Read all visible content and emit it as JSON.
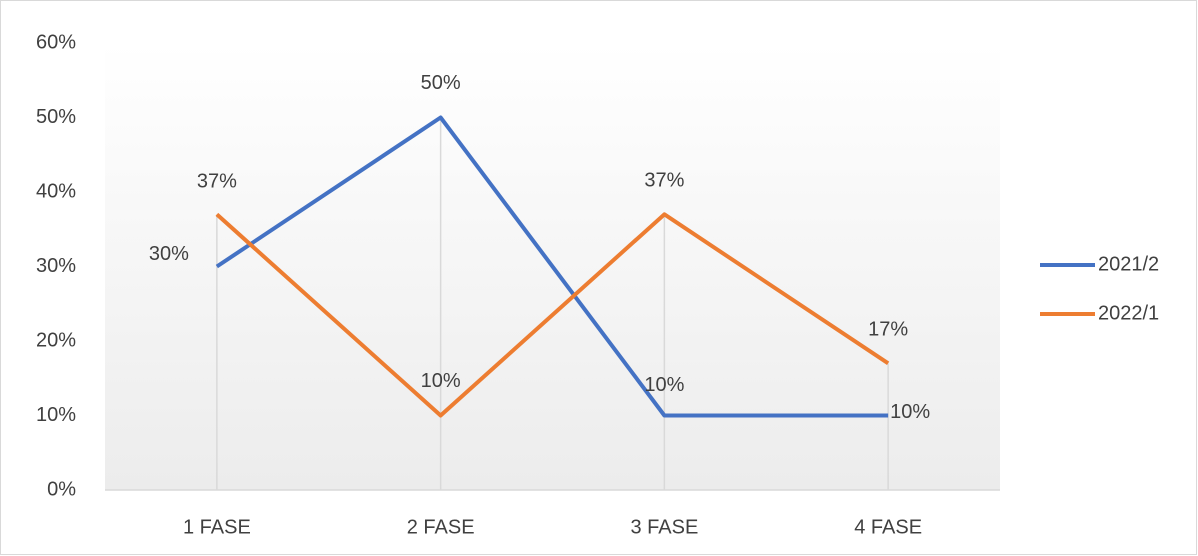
{
  "chart_data": {
    "type": "line",
    "categories": [
      "1 FASE",
      "2 FASE",
      "3 FASE",
      "4 FASE"
    ],
    "series": [
      {
        "name": "2021/2",
        "color": "#4472c4",
        "values": [
          30,
          50,
          10,
          10
        ],
        "value_labels": [
          "30%",
          "50%",
          "10%",
          "10%"
        ]
      },
      {
        "name": "2022/1",
        "color": "#ed7d31",
        "values": [
          37,
          10,
          37,
          17
        ],
        "value_labels": [
          "37%",
          "10%",
          "37%",
          "17%"
        ]
      }
    ],
    "ylim": [
      0,
      60
    ],
    "yticks": [
      {
        "value": 0,
        "label": "0%"
      },
      {
        "value": 10,
        "label": "10%"
      },
      {
        "value": 20,
        "label": "20%"
      },
      {
        "value": 30,
        "label": "30%"
      },
      {
        "value": 40,
        "label": "40%"
      },
      {
        "value": 50,
        "label": "50%"
      },
      {
        "value": 60,
        "label": "60%"
      }
    ],
    "legend": "right"
  }
}
